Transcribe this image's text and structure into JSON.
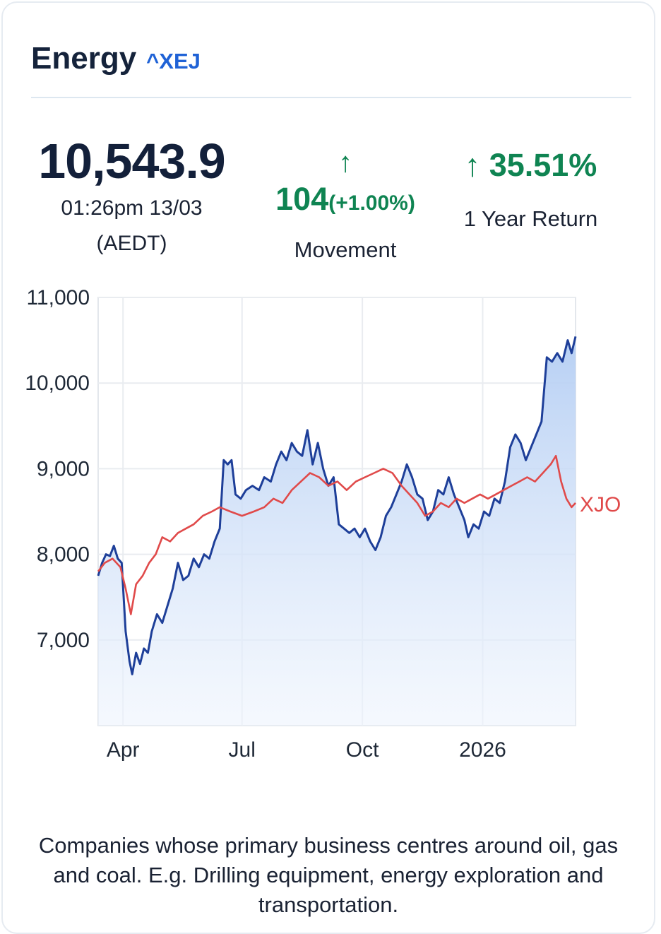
{
  "header": {
    "title": "Energy",
    "ticker": "^XEJ"
  },
  "price": {
    "value": "10,543.9",
    "time": "01:26pm 13/03",
    "timezone": "(AEDT)"
  },
  "movement": {
    "value": "104",
    "percent": "(+1.00%)",
    "label": "Movement"
  },
  "one_year": {
    "value": "35.51%",
    "label": "1 Year Return"
  },
  "colors": {
    "up": "#0f8452",
    "index_line": "#1e3f99",
    "benchmark_line": "#e04a4a",
    "fill_top": "#b3cdf3",
    "ticker": "#1f62d6"
  },
  "chart_data": {
    "type": "line",
    "xlim": [
      "2025-03-13",
      "2026-03-13"
    ],
    "ylim": [
      6000,
      11000
    ],
    "y_ticks": [
      {
        "value": 11000,
        "label": "11,000"
      },
      {
        "value": 10000,
        "label": "10,000"
      },
      {
        "value": 9000,
        "label": "9,000"
      },
      {
        "value": 8000,
        "label": "8,000"
      },
      {
        "value": 7000,
        "label": "7,000"
      }
    ],
    "x_ticks": [
      {
        "date": "2025-04-01",
        "label": "Apr"
      },
      {
        "date": "2025-07-01",
        "label": "Jul"
      },
      {
        "date": "2025-10-01",
        "label": "Oct"
      },
      {
        "date": "2026-01-01",
        "label": "2026"
      }
    ],
    "grid": true,
    "series": [
      {
        "role": "index",
        "fill": true,
        "points": [
          [
            "2025-03-13",
            7750
          ],
          [
            "2025-03-16",
            7900
          ],
          [
            "2025-03-19",
            8000
          ],
          [
            "2025-03-22",
            7980
          ],
          [
            "2025-03-25",
            8100
          ],
          [
            "2025-03-28",
            7950
          ],
          [
            "2025-03-31",
            7900
          ],
          [
            "2025-04-03",
            7100
          ],
          [
            "2025-04-06",
            6750
          ],
          [
            "2025-04-08",
            6600
          ],
          [
            "2025-04-11",
            6850
          ],
          [
            "2025-04-14",
            6720
          ],
          [
            "2025-04-17",
            6900
          ],
          [
            "2025-04-20",
            6850
          ],
          [
            "2025-04-23",
            7100
          ],
          [
            "2025-04-27",
            7300
          ],
          [
            "2025-05-01",
            7200
          ],
          [
            "2025-05-05",
            7400
          ],
          [
            "2025-05-09",
            7600
          ],
          [
            "2025-05-13",
            7900
          ],
          [
            "2025-05-17",
            7700
          ],
          [
            "2025-05-21",
            7750
          ],
          [
            "2025-05-25",
            7950
          ],
          [
            "2025-05-29",
            7850
          ],
          [
            "2025-06-02",
            8000
          ],
          [
            "2025-06-06",
            7950
          ],
          [
            "2025-06-10",
            8150
          ],
          [
            "2025-06-14",
            8300
          ],
          [
            "2025-06-17",
            9100
          ],
          [
            "2025-06-20",
            9050
          ],
          [
            "2025-06-23",
            9100
          ],
          [
            "2025-06-26",
            8700
          ],
          [
            "2025-06-30",
            8650
          ],
          [
            "2025-07-04",
            8750
          ],
          [
            "2025-07-09",
            8800
          ],
          [
            "2025-07-14",
            8750
          ],
          [
            "2025-07-18",
            8900
          ],
          [
            "2025-07-23",
            8850
          ],
          [
            "2025-07-27",
            9050
          ],
          [
            "2025-07-31",
            9200
          ],
          [
            "2025-08-04",
            9100
          ],
          [
            "2025-08-08",
            9300
          ],
          [
            "2025-08-12",
            9200
          ],
          [
            "2025-08-16",
            9150
          ],
          [
            "2025-08-20",
            9450
          ],
          [
            "2025-08-24",
            9050
          ],
          [
            "2025-08-28",
            9300
          ],
          [
            "2025-09-01",
            9000
          ],
          [
            "2025-09-05",
            8800
          ],
          [
            "2025-09-09",
            8900
          ],
          [
            "2025-09-13",
            8350
          ],
          [
            "2025-09-17",
            8300
          ],
          [
            "2025-09-21",
            8250
          ],
          [
            "2025-09-25",
            8300
          ],
          [
            "2025-09-29",
            8200
          ],
          [
            "2025-10-03",
            8300
          ],
          [
            "2025-10-07",
            8150
          ],
          [
            "2025-10-11",
            8050
          ],
          [
            "2025-10-15",
            8200
          ],
          [
            "2025-10-19",
            8450
          ],
          [
            "2025-10-23",
            8550
          ],
          [
            "2025-10-27",
            8700
          ],
          [
            "2025-10-31",
            8850
          ],
          [
            "2025-11-04",
            9050
          ],
          [
            "2025-11-08",
            8900
          ],
          [
            "2025-11-12",
            8700
          ],
          [
            "2025-11-16",
            8650
          ],
          [
            "2025-11-20",
            8400
          ],
          [
            "2025-11-24",
            8500
          ],
          [
            "2025-11-28",
            8750
          ],
          [
            "2025-12-02",
            8700
          ],
          [
            "2025-12-06",
            8900
          ],
          [
            "2025-12-10",
            8700
          ],
          [
            "2025-12-14",
            8550
          ],
          [
            "2025-12-18",
            8400
          ],
          [
            "2025-12-21",
            8200
          ],
          [
            "2025-12-25",
            8350
          ],
          [
            "2025-12-29",
            8300
          ],
          [
            "2026-01-02",
            8500
          ],
          [
            "2026-01-06",
            8450
          ],
          [
            "2026-01-10",
            8650
          ],
          [
            "2026-01-14",
            8600
          ],
          [
            "2026-01-18",
            8850
          ],
          [
            "2026-01-22",
            9250
          ],
          [
            "2026-01-26",
            9400
          ],
          [
            "2026-01-30",
            9300
          ],
          [
            "2026-02-03",
            9100
          ],
          [
            "2026-02-07",
            9250
          ],
          [
            "2026-02-11",
            9400
          ],
          [
            "2026-02-15",
            9550
          ],
          [
            "2026-02-19",
            10300
          ],
          [
            "2026-02-23",
            10250
          ],
          [
            "2026-02-27",
            10350
          ],
          [
            "2026-03-03",
            10250
          ],
          [
            "2026-03-07",
            10500
          ],
          [
            "2026-03-10",
            10350
          ],
          [
            "2026-03-13",
            10544
          ]
        ]
      },
      {
        "name": "XJO",
        "role": "benchmark",
        "points": [
          [
            "2025-03-13",
            7800
          ],
          [
            "2025-03-18",
            7900
          ],
          [
            "2025-03-24",
            7950
          ],
          [
            "2025-03-30",
            7850
          ],
          [
            "2025-04-03",
            7600
          ],
          [
            "2025-04-07",
            7300
          ],
          [
            "2025-04-11",
            7650
          ],
          [
            "2025-04-16",
            7750
          ],
          [
            "2025-04-21",
            7900
          ],
          [
            "2025-04-26",
            8000
          ],
          [
            "2025-05-01",
            8200
          ],
          [
            "2025-05-07",
            8150
          ],
          [
            "2025-05-13",
            8250
          ],
          [
            "2025-05-19",
            8300
          ],
          [
            "2025-05-25",
            8350
          ],
          [
            "2025-06-01",
            8450
          ],
          [
            "2025-06-08",
            8500
          ],
          [
            "2025-06-14",
            8550
          ],
          [
            "2025-06-22",
            8500
          ],
          [
            "2025-07-01",
            8450
          ],
          [
            "2025-07-10",
            8500
          ],
          [
            "2025-07-18",
            8550
          ],
          [
            "2025-07-25",
            8650
          ],
          [
            "2025-08-01",
            8600
          ],
          [
            "2025-08-08",
            8750
          ],
          [
            "2025-08-15",
            8850
          ],
          [
            "2025-08-22",
            8950
          ],
          [
            "2025-08-29",
            8900
          ],
          [
            "2025-09-05",
            8800
          ],
          [
            "2025-09-12",
            8850
          ],
          [
            "2025-09-19",
            8750
          ],
          [
            "2025-09-26",
            8850
          ],
          [
            "2025-10-03",
            8900
          ],
          [
            "2025-10-10",
            8950
          ],
          [
            "2025-10-17",
            9000
          ],
          [
            "2025-10-24",
            8950
          ],
          [
            "2025-10-31",
            8800
          ],
          [
            "2025-11-06",
            8700
          ],
          [
            "2025-11-12",
            8600
          ],
          [
            "2025-11-18",
            8450
          ],
          [
            "2025-11-24",
            8500
          ],
          [
            "2025-11-30",
            8600
          ],
          [
            "2025-12-06",
            8550
          ],
          [
            "2025-12-12",
            8650
          ],
          [
            "2025-12-18",
            8600
          ],
          [
            "2025-12-24",
            8650
          ],
          [
            "2025-12-30",
            8700
          ],
          [
            "2026-01-05",
            8650
          ],
          [
            "2026-01-11",
            8700
          ],
          [
            "2026-01-17",
            8750
          ],
          [
            "2026-01-23",
            8800
          ],
          [
            "2026-01-29",
            8850
          ],
          [
            "2026-02-04",
            8900
          ],
          [
            "2026-02-10",
            8850
          ],
          [
            "2026-02-16",
            8950
          ],
          [
            "2026-02-22",
            9050
          ],
          [
            "2026-02-26",
            9150
          ],
          [
            "2026-03-02",
            8850
          ],
          [
            "2026-03-06",
            8650
          ],
          [
            "2026-03-10",
            8550
          ],
          [
            "2026-03-13",
            8600
          ]
        ]
      }
    ]
  },
  "description": "Companies whose primary business centres around oil, gas and coal. E.g. Drilling equipment, energy exploration and transportation."
}
